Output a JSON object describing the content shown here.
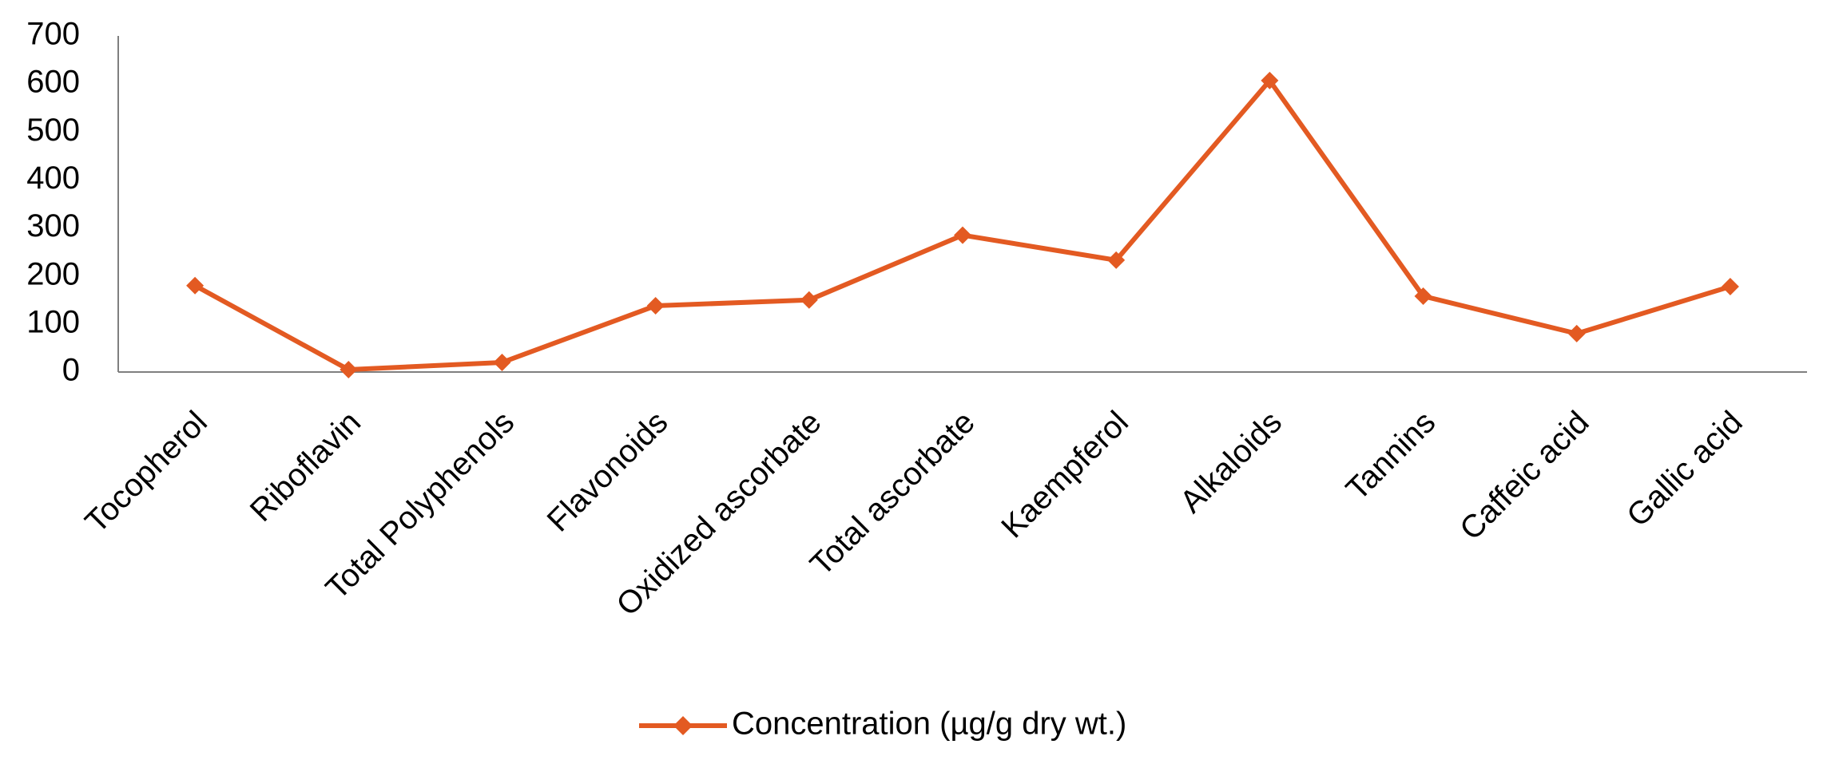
{
  "chart_data": {
    "type": "line",
    "title": "",
    "xlabel": "",
    "ylabel": "",
    "ylim": [
      0,
      700
    ],
    "yticks": [
      "0",
      "100",
      "200",
      "300",
      "400",
      "500",
      "600",
      "700"
    ],
    "grid": false,
    "legend_position": "bottom",
    "categories": [
      "Tocopherol",
      "Riboflavin",
      "Total Polyphenols",
      "Flavonoids",
      "Oxidized ascorbate",
      "Total ascorbate",
      "Kaempferol",
      "Alkaloids",
      "Tannins",
      "Caffeic acid",
      "Gallic acid"
    ],
    "series": [
      {
        "name": "Concentration (µg/g dry wt.)",
        "color": "#e35a22",
        "marker": "diamond",
        "values": [
          180,
          5,
          20,
          138,
          150,
          285,
          233,
          607,
          158,
          80,
          178
        ]
      }
    ]
  }
}
